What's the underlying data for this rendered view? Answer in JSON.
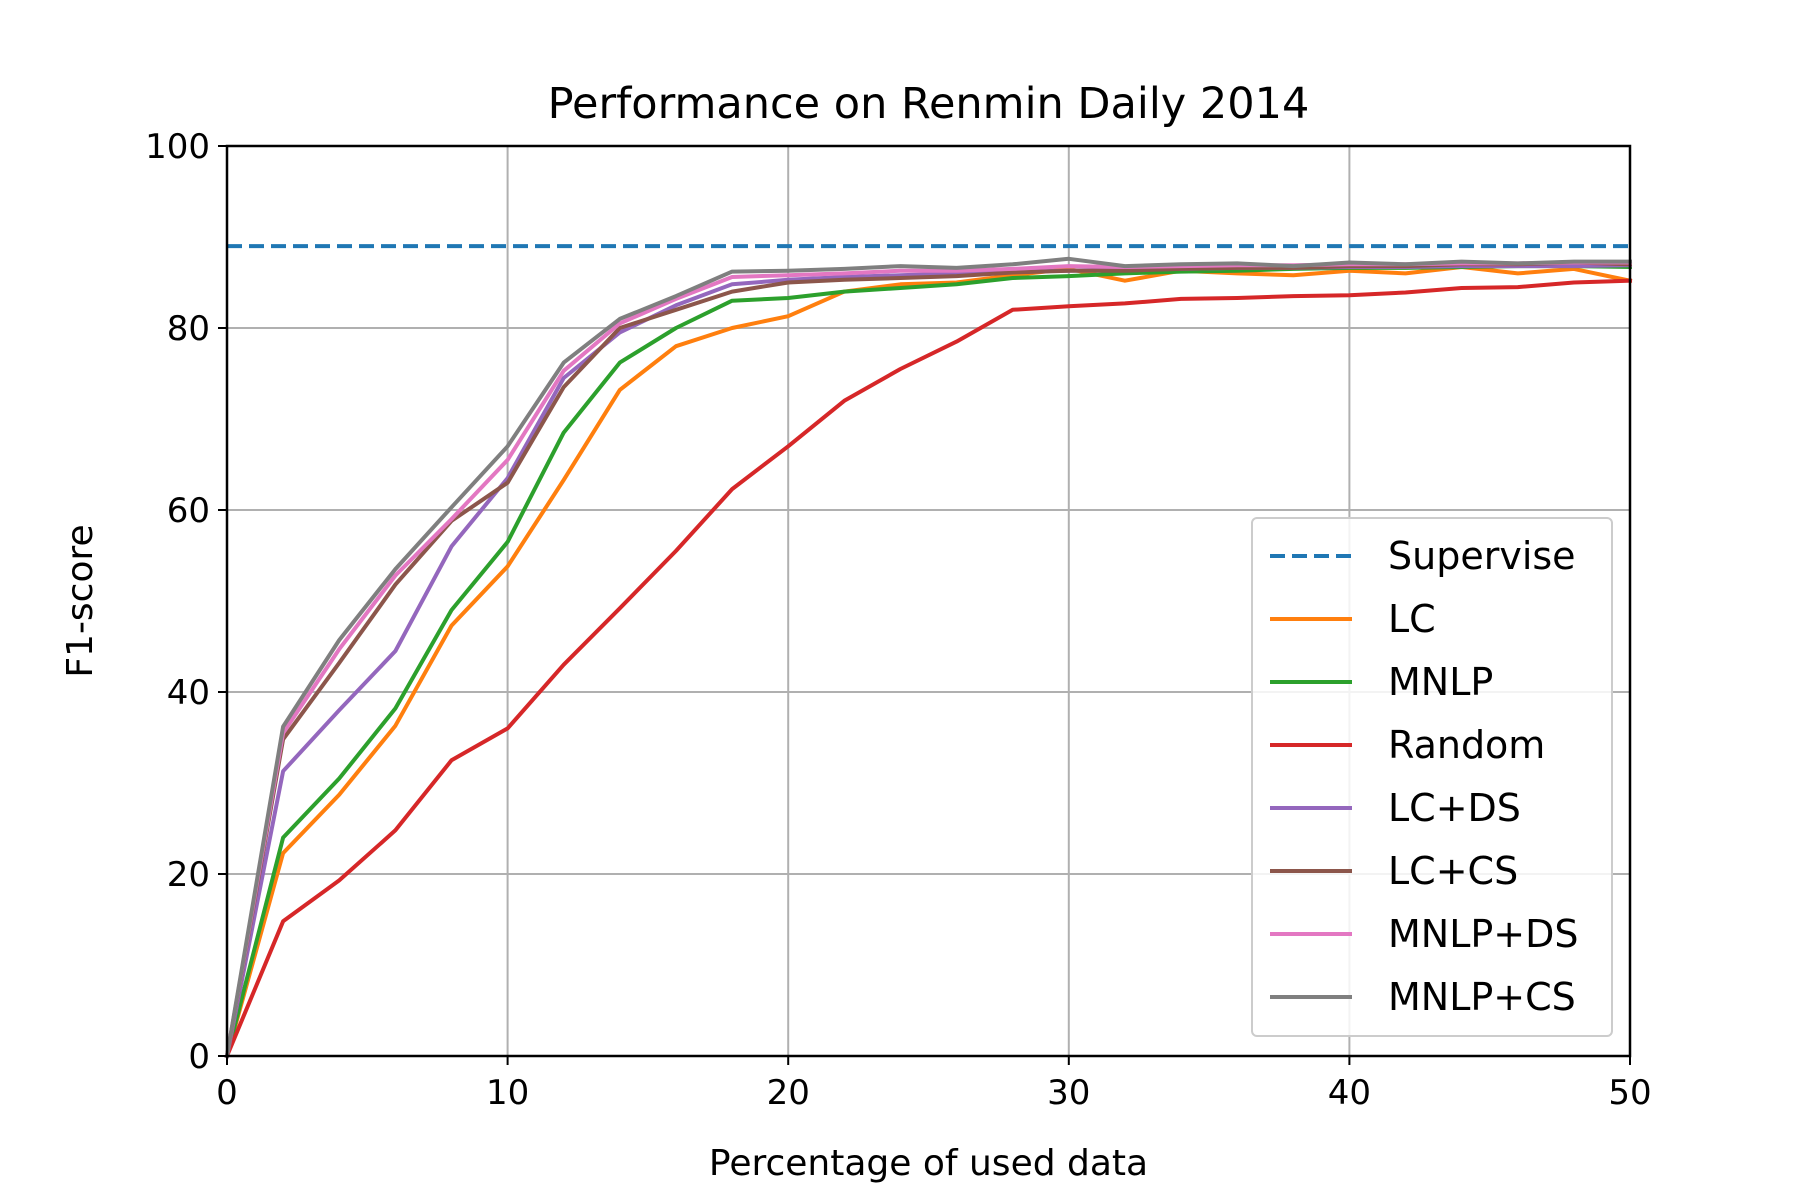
{
  "chart_data": {
    "type": "line",
    "title": "Performance on Renmin Daily 2014",
    "xlabel": "Percentage of used data",
    "ylabel": "F1-score",
    "xlim": [
      0,
      50
    ],
    "ylim": [
      0,
      100
    ],
    "xticks": [
      "0",
      "10",
      "20",
      "30",
      "40",
      "50"
    ],
    "yticks": [
      "0",
      "20",
      "40",
      "60",
      "80",
      "100"
    ],
    "grid": true,
    "legend_position": "lower-right",
    "x": [
      0,
      2,
      4,
      6,
      8,
      10,
      12,
      14,
      16,
      18,
      20,
      22,
      24,
      26,
      28,
      30,
      32,
      34,
      36,
      38,
      40,
      42,
      44,
      46,
      48,
      50
    ],
    "series": [
      {
        "name": "Supervise",
        "color": "#1f77b4",
        "style": "dashed",
        "values": [
          89,
          89,
          89,
          89,
          89,
          89,
          89,
          89,
          89,
          89,
          89,
          89,
          89,
          89,
          89,
          89,
          89,
          89,
          89,
          89,
          89,
          89,
          89,
          89,
          89,
          89
        ]
      },
      {
        "name": "LC",
        "color": "#ff7f0e",
        "style": "solid",
        "values": [
          0,
          22.3,
          28.7,
          36.3,
          47.3,
          53.8,
          63.3,
          73.2,
          78,
          80,
          81.3,
          84,
          84.8,
          85,
          85.8,
          86.5,
          85.2,
          86.3,
          86,
          85.8,
          86.3,
          86,
          86.7,
          86,
          86.5,
          85.2
        ]
      },
      {
        "name": "MNLP",
        "color": "#2ca02c",
        "style": "solid",
        "values": [
          0,
          24,
          30.5,
          38.2,
          49,
          56.5,
          68.5,
          76.2,
          80,
          83,
          83.3,
          84,
          84.4,
          84.8,
          85.5,
          85.7,
          86,
          86.2,
          86.3,
          86.5,
          86.6,
          86.6,
          86.7,
          86.8,
          86.8,
          86.7
        ]
      },
      {
        "name": "Random",
        "color": "#d62728",
        "style": "solid",
        "values": [
          0,
          14.8,
          19.3,
          24.8,
          32.5,
          36,
          43,
          49.2,
          55.5,
          62.3,
          67,
          72,
          75.5,
          78.5,
          82,
          82.4,
          82.7,
          83.2,
          83.3,
          83.5,
          83.6,
          83.9,
          84.4,
          84.5,
          85,
          85.2
        ]
      },
      {
        "name": "LC+DS",
        "color": "#9467bd",
        "style": "solid",
        "values": [
          0,
          31.3,
          38,
          44.5,
          56,
          63.5,
          74.5,
          79.5,
          82.5,
          84.8,
          85.3,
          85.6,
          85.8,
          86,
          86.2,
          86.3,
          86.4,
          86.5,
          86.6,
          86.6,
          86.7,
          86.7,
          86.8,
          86.8,
          86.8,
          86.9
        ]
      },
      {
        "name": "LC+CS",
        "color": "#8c564b",
        "style": "solid",
        "values": [
          0,
          34.8,
          43.2,
          51.8,
          58.8,
          63,
          73.5,
          80,
          82,
          84,
          85,
          85.3,
          85.5,
          85.7,
          86.1,
          86.3,
          86.3,
          86.5,
          86.6,
          86.6,
          86.8,
          86.8,
          87,
          87,
          87.2,
          87
        ]
      },
      {
        "name": "MNLP+DS",
        "color": "#e377c2",
        "style": "solid",
        "values": [
          0,
          35.5,
          44.7,
          52.8,
          59,
          65.5,
          75.3,
          80.5,
          83.2,
          85.6,
          85.8,
          86,
          86.3,
          86.3,
          86.5,
          86.8,
          86.7,
          86.8,
          86.9,
          86.9,
          87,
          87,
          87.1,
          87.1,
          87.2,
          87.2
        ]
      },
      {
        "name": "MNLP+CS",
        "color": "#7f7f7f",
        "style": "solid",
        "values": [
          0,
          36.2,
          45.7,
          53.5,
          60.3,
          67,
          76.2,
          81,
          83.5,
          86.2,
          86.3,
          86.5,
          86.8,
          86.6,
          87,
          87.6,
          86.8,
          87,
          87.1,
          86.8,
          87.2,
          87,
          87.3,
          87.1,
          87.3,
          87.3
        ]
      }
    ]
  }
}
